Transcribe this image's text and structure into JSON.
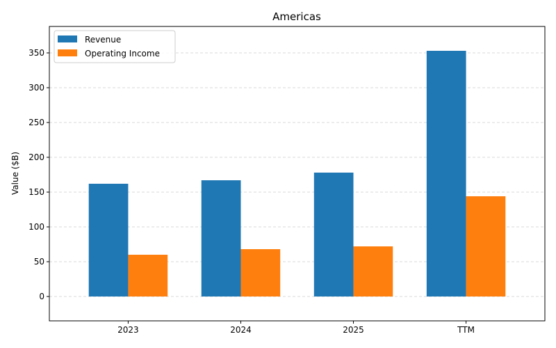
{
  "chart_data": {
    "type": "bar",
    "title": "Americas",
    "xlabel": "",
    "ylabel": "Value ($B)",
    "categories": [
      "2023",
      "2024",
      "2025",
      "TTM"
    ],
    "series": [
      {
        "name": "Revenue",
        "color": "#1f77b4",
        "values": [
          162,
          167,
          178,
          353
        ]
      },
      {
        "name": "Operating Income",
        "color": "#ff7f0e",
        "values": [
          60,
          68,
          72,
          144
        ]
      }
    ],
    "ylim": [
      -35,
      388
    ],
    "yticks": [
      0,
      50,
      100,
      150,
      200,
      250,
      300,
      350
    ],
    "grid": "y-dashed",
    "legend_position": "top-left"
  }
}
